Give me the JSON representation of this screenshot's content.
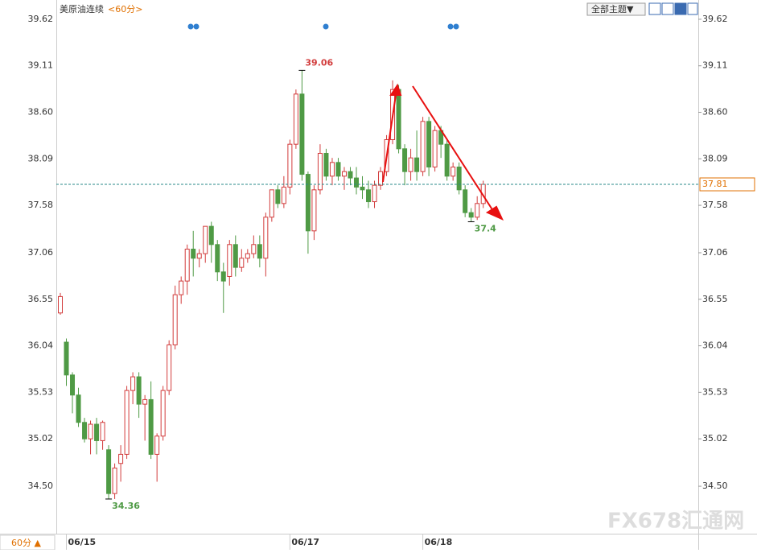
{
  "chart_data": {
    "type": "candlestick",
    "title": "美原油连续",
    "period": "<60分>",
    "theme_button": "全部主题▼",
    "period_button": "60分 ▲",
    "watermark": "FX678汇通网",
    "up_color": "#d23c3c",
    "down_color": "#4f9a45",
    "ylim": [
      33.98,
      39.69
    ],
    "yticks": [
      39.62,
      39.11,
      {
        "value": 38.6,
        "label": "38.60"
      },
      38.09,
      37.58,
      37.06,
      36.55,
      36.04,
      35.53,
      35.02,
      {
        "value": 34.5,
        "label": "34.50"
      }
    ],
    "open": [
      36.4,
      36.08,
      35.72,
      35.5,
      35.2,
      35.02,
      35.18,
      35.0,
      34.9,
      34.42,
      34.75,
      34.85,
      35.55,
      35.7,
      35.4,
      35.45,
      34.85,
      35.05,
      35.55,
      36.05,
      36.6,
      36.75,
      37.1,
      37.0,
      37.05,
      37.35,
      37.15,
      36.85,
      36.8,
      37.15,
      36.9,
      37.0,
      37.05,
      37.15,
      37.0,
      37.45,
      37.75,
      37.6,
      37.78,
      38.25,
      38.8,
      37.92,
      37.3,
      37.75,
      38.15,
      37.9,
      38.05,
      37.9,
      37.95,
      37.88,
      37.78,
      37.75,
      37.62,
      37.8,
      37.95,
      38.3,
      38.85,
      38.2,
      37.95,
      38.1,
      37.95,
      38.5,
      38.0,
      38.4,
      38.25,
      37.9,
      38.0,
      37.75,
      37.5,
      37.45,
      37.6
    ],
    "high": [
      36.62,
      36.12,
      35.75,
      35.58,
      35.25,
      35.22,
      35.25,
      35.22,
      34.95,
      34.75,
      34.95,
      35.6,
      35.75,
      35.75,
      35.5,
      35.65,
      35.08,
      35.6,
      36.1,
      36.7,
      36.8,
      37.15,
      37.3,
      37.1,
      37.35,
      37.4,
      37.2,
      36.95,
      37.2,
      37.25,
      37.1,
      37.1,
      37.25,
      37.25,
      37.5,
      37.75,
      37.8,
      37.9,
      38.3,
      38.85,
      39.06,
      37.95,
      37.8,
      38.25,
      38.2,
      38.1,
      38.1,
      38.0,
      38.0,
      38.0,
      37.9,
      37.85,
      37.85,
      38.0,
      38.35,
      38.95,
      38.9,
      38.25,
      38.2,
      38.4,
      38.55,
      38.55,
      38.45,
      38.45,
      38.3,
      38.05,
      38.05,
      37.8,
      37.55,
      37.68,
      37.85
    ],
    "low": [
      36.38,
      35.6,
      35.3,
      35.15,
      34.98,
      34.85,
      34.85,
      34.9,
      34.36,
      34.36,
      34.55,
      34.8,
      35.4,
      35.25,
      35.0,
      34.8,
      34.55,
      35.0,
      35.5,
      36.0,
      36.5,
      36.6,
      36.8,
      36.9,
      36.95,
      36.95,
      36.75,
      36.4,
      36.7,
      36.8,
      36.85,
      36.95,
      37.0,
      36.9,
      36.8,
      37.4,
      37.55,
      37.55,
      37.7,
      38.2,
      37.85,
      37.05,
      37.2,
      37.7,
      37.85,
      37.8,
      37.85,
      37.75,
      37.8,
      37.7,
      37.65,
      37.55,
      37.55,
      37.75,
      37.9,
      38.25,
      38.15,
      37.8,
      37.85,
      37.85,
      37.9,
      37.9,
      37.95,
      38.1,
      37.85,
      37.85,
      37.7,
      37.45,
      37.4,
      37.42,
      37.55
    ],
    "close": [
      36.58,
      35.72,
      35.5,
      35.2,
      35.02,
      35.18,
      35.0,
      35.2,
      34.42,
      34.7,
      34.85,
      35.55,
      35.7,
      35.4,
      35.45,
      34.85,
      35.05,
      35.55,
      36.05,
      36.6,
      36.75,
      37.1,
      37.0,
      37.05,
      37.35,
      37.15,
      36.85,
      36.75,
      37.15,
      36.9,
      37.0,
      37.05,
      37.15,
      37.0,
      37.45,
      37.75,
      37.6,
      37.78,
      38.25,
      38.8,
      37.92,
      37.3,
      37.75,
      38.15,
      37.9,
      38.05,
      37.9,
      37.95,
      37.88,
      37.78,
      37.75,
      37.62,
      37.8,
      37.95,
      38.3,
      38.85,
      38.2,
      37.95,
      38.1,
      37.95,
      38.5,
      38.0,
      38.4,
      38.25,
      37.9,
      38.0,
      37.75,
      37.5,
      37.45,
      37.6,
      37.81
    ],
    "date_labels": [
      {
        "label": "06/15",
        "index": 1
      },
      {
        "label": "06/17",
        "index": 38
      },
      {
        "label": "06/18",
        "index": 60
      }
    ],
    "annotations": [
      {
        "index": 40,
        "value": 39.06,
        "color": "#d23c3c"
      },
      {
        "index": 8,
        "value": 34.36,
        "color": "#4f9a45"
      },
      {
        "index": 68,
        "value": 37.4,
        "color": "#4f9a45"
      }
    ],
    "last_price": 37.81,
    "last_price_color": "#e07000"
  }
}
